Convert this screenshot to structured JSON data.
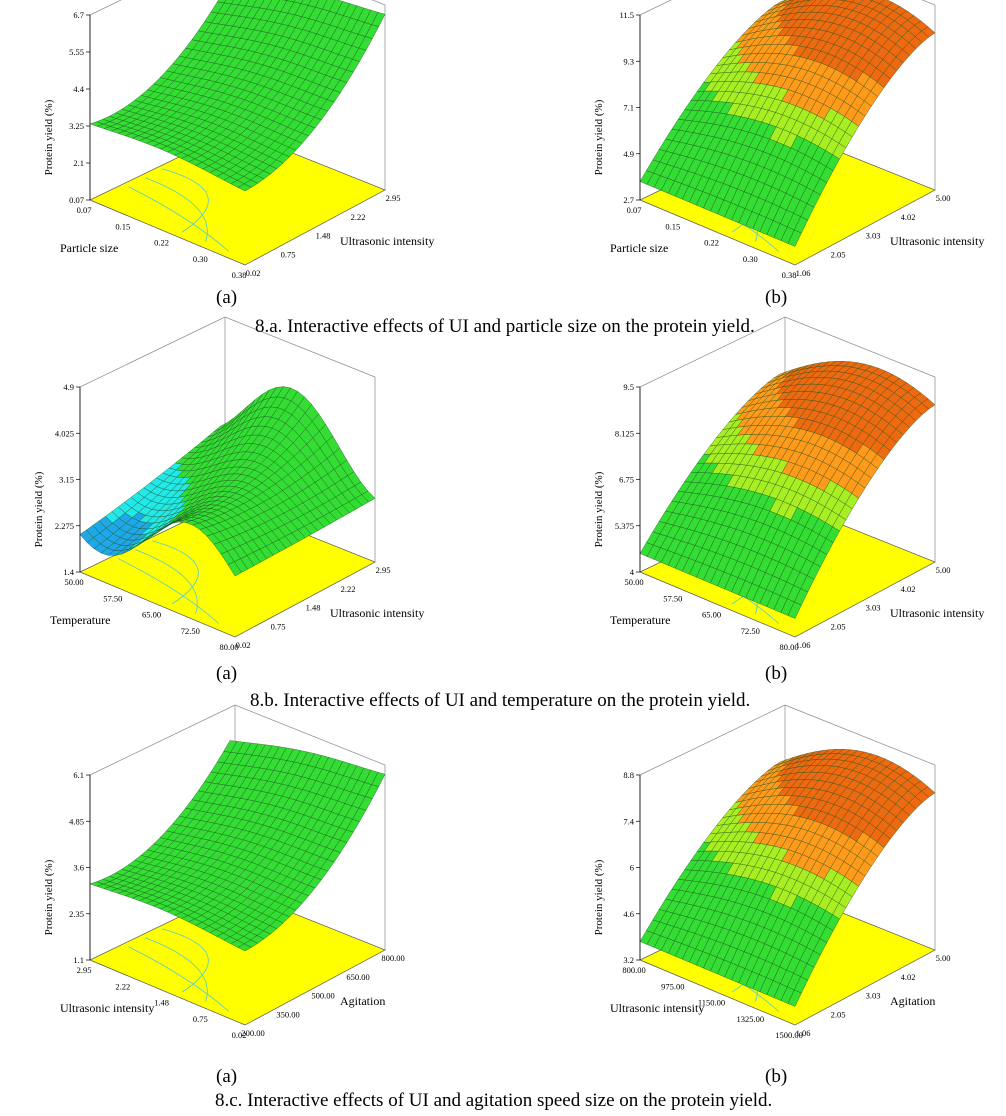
{
  "chart_data": [
    {
      "type": "surface3d",
      "zlabel": "Protein yield (%)",
      "zticks": [
        "6.7",
        "5.55",
        "4.4",
        "3.25",
        "2.1",
        "0.07"
      ],
      "xlabel": "Particle size",
      "xticks": [
        "0.07",
        "0.15",
        "0.22",
        "0.30",
        "0.38"
      ],
      "ylabel": "Ultrasonic intensity",
      "yticks": [
        "0.02",
        "0.75",
        "1.48",
        "2.22",
        "2.95"
      ],
      "shape": "valley",
      "surface": "green-cyan",
      "sublabel": "(a)",
      "group": "8.a"
    },
    {
      "type": "surface3d",
      "zlabel": "Protein yield (%)",
      "zticks": [
        "11.5",
        "9.3",
        "7.1",
        "4.9",
        "2.7"
      ],
      "xlabel": "Particle size",
      "xticks": [
        "0.07",
        "0.15",
        "0.22",
        "0.30",
        "0.38"
      ],
      "ylabel": "Ultrasonic intensity",
      "yticks": [
        "1.06",
        "2.05",
        "3.03",
        "4.02",
        "5.00"
      ],
      "shape": "dome",
      "surface": "green-orange",
      "sublabel": "(b)",
      "group": "8.a"
    },
    {
      "type": "surface3d",
      "zlabel": "Protein yield (%)",
      "zticks": [
        "4.9",
        "4.025",
        "3.15",
        "2.275",
        "1.4"
      ],
      "xlabel": "Temperature",
      "xticks": [
        "50.00",
        "57.50",
        "65.00",
        "72.50",
        "80.00"
      ],
      "ylabel": "Ultrasonic intensity",
      "yticks": [
        "0.02",
        "0.75",
        "1.48",
        "2.22",
        "2.95"
      ],
      "shape": "wave",
      "surface": "green-cyan",
      "sublabel": "(a)",
      "group": "8.b"
    },
    {
      "type": "surface3d",
      "zlabel": "Protein yield (%)",
      "zticks": [
        "9.5",
        "8.125",
        "6.75",
        "5.375",
        "4"
      ],
      "xlabel": "Temperature",
      "xticks": [
        "50.00",
        "57.50",
        "65.00",
        "72.50",
        "80.00"
      ],
      "ylabel": "Ultrasonic intensity",
      "yticks": [
        "1.06",
        "2.05",
        "3.03",
        "4.02",
        "5.00"
      ],
      "shape": "dome",
      "surface": "green-orange",
      "sublabel": "(b)",
      "group": "8.b"
    },
    {
      "type": "surface3d",
      "zlabel": "Protein yield (%)",
      "zticks": [
        "6.1",
        "4.85",
        "3.6",
        "2.35",
        "1.1"
      ],
      "xlabel": "Ultrasonic intensity",
      "xticks": [
        "2.95",
        "2.22",
        "1.48",
        "0.75",
        "0.02"
      ],
      "ylabel": "Agitation",
      "yticks": [
        "200.00",
        "350.00",
        "500.00",
        "650.00",
        "800.00"
      ],
      "shape": "valley",
      "surface": "green-cyan",
      "sublabel": "(a)",
      "group": "8.c"
    },
    {
      "type": "surface3d",
      "zlabel": "Protein yield (%)",
      "zticks": [
        "8.8",
        "7.4",
        "6",
        "4.6",
        "3.2"
      ],
      "xlabel": "Ultrasonic intensity",
      "xticks": [
        "800.00",
        "975.00",
        "1150.00",
        "1325.00",
        "1500.00"
      ],
      "ylabel": "Agitation",
      "yticks": [
        "1.06",
        "2.05",
        "3.03",
        "4.02",
        "5.00"
      ],
      "shape": "dome",
      "surface": "green-orange",
      "sublabel": "(b)",
      "group": "8.c"
    }
  ],
  "captions": {
    "a": "8.a. Interactive effects of UI and particle size on the protein yield.",
    "b": "8.b. Interactive effects of UI and temperature on the protein yield.",
    "c": "8.c. Interactive effects of UI and agitation speed size on the protein yield."
  },
  "colors": {
    "floor": "#ffff00",
    "green": "#33dd33",
    "cyan": "#22e8e8",
    "blue": "#1ea8e8",
    "yellowgreen": "#a8ee22",
    "orange": "#ff9a1a",
    "darkorange": "#ee6a10"
  }
}
